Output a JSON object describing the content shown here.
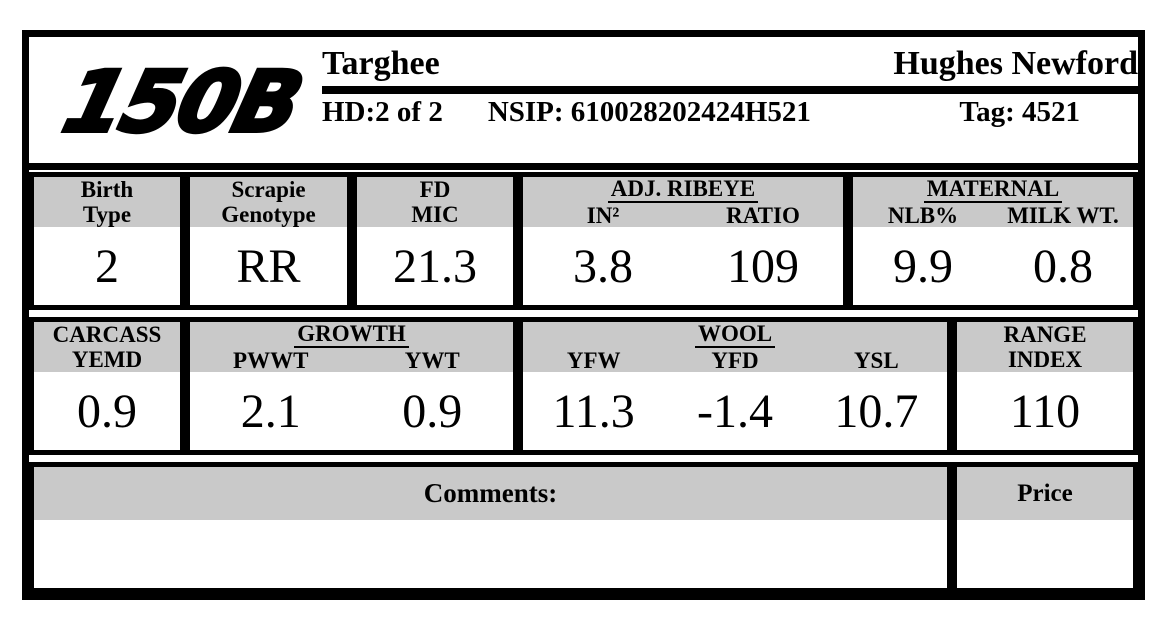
{
  "card": {
    "logo": "150B",
    "header": {
      "breed": "Targhee",
      "owner": "Hughes Newford",
      "hd": "HD:2 of 2",
      "nsip": "NSIP: 610028202424H521",
      "tag": "Tag: 4521"
    },
    "row1": {
      "birth_type": {
        "label1": "Birth",
        "label2": "Type",
        "value": "2"
      },
      "scrapie": {
        "label1": "Scrapie",
        "label2": "Genotype",
        "value": "RR"
      },
      "fd_mic": {
        "label1": "FD",
        "label2": "MIC",
        "value": "21.3"
      },
      "adj_ribeye": {
        "group": "ADJ. RIBEYE",
        "col1": "IN²",
        "col2": "RATIO",
        "val1": "3.8",
        "val2": "109"
      },
      "maternal": {
        "group": "MATERNAL",
        "col1": "NLB%",
        "col2": "MILK WT.",
        "val1": "9.9",
        "val2": "0.8"
      }
    },
    "row2": {
      "carcass": {
        "label1": "CARCASS",
        "label2": "YEMD",
        "value": "0.9"
      },
      "growth": {
        "group": "GROWTH",
        "col1": "PWWT",
        "col2": "YWT",
        "val1": "2.1",
        "val2": "0.9"
      },
      "wool": {
        "group": "WOOL",
        "col1": "YFW",
        "col2": "YFD",
        "col3": "YSL",
        "val1": "11.3",
        "val2": "-1.4",
        "val3": "10.7"
      },
      "range_index": {
        "label1": "RANGE",
        "label2": "INDEX",
        "value": "110"
      }
    },
    "bottom": {
      "comments_label": "Comments:",
      "comments_value": "",
      "price_label": "Price",
      "price_value": ""
    },
    "colors": {
      "band_gray": "#c9c9c9",
      "ink": "#000000"
    }
  }
}
